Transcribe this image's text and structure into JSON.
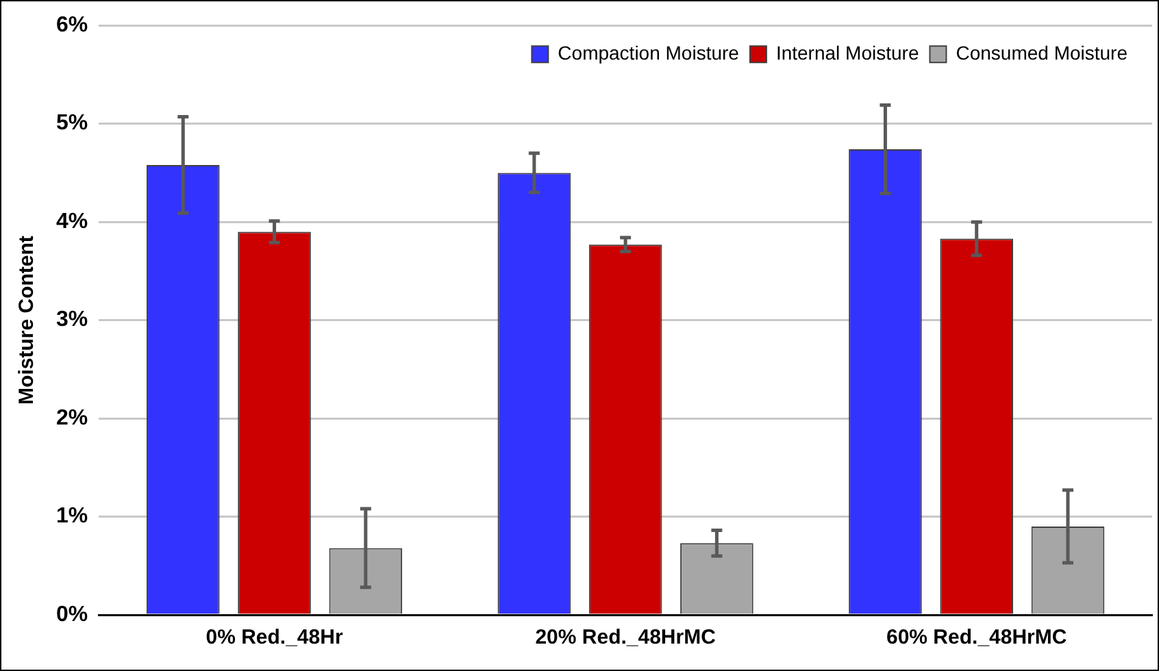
{
  "chart_data": {
    "type": "bar",
    "ylabel": "Moisture Content",
    "categories": [
      "0% Red._48Hr",
      "20% Red._48HrMC",
      "60% Red._48HrMC"
    ],
    "series": [
      {
        "name": "Compaction Moisture",
        "color": "#3333ff",
        "values": [
          4.58,
          4.5,
          4.74
        ],
        "errors": [
          0.49,
          0.2,
          0.45
        ]
      },
      {
        "name": "Internal Moisture",
        "color": "#cc0000",
        "values": [
          3.9,
          3.77,
          3.83
        ],
        "errors": [
          0.11,
          0.07,
          0.17
        ]
      },
      {
        "name": "Consumed Moisture",
        "color": "#a6a6a6",
        "values": [
          0.68,
          0.73,
          0.9
        ],
        "errors": [
          0.4,
          0.13,
          0.37
        ]
      }
    ],
    "ylim": [
      0,
      6
    ],
    "yticks": [
      {
        "value": 0,
        "label": "0%"
      },
      {
        "value": 1,
        "label": "1%"
      },
      {
        "value": 2,
        "label": "2%"
      },
      {
        "value": 3,
        "label": "3%"
      },
      {
        "value": 4,
        "label": "4%"
      },
      {
        "value": 5,
        "label": "5%"
      },
      {
        "value": 6,
        "label": "6%"
      }
    ],
    "grid": "y",
    "legend": "top right"
  }
}
